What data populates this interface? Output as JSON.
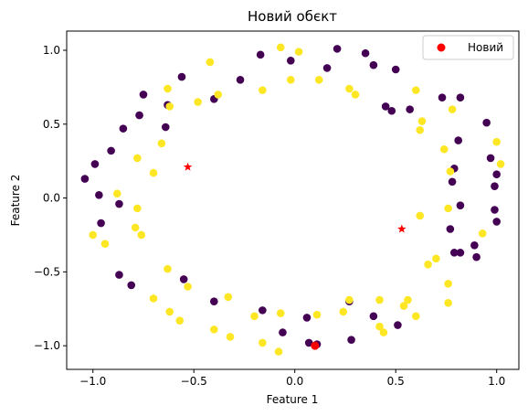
{
  "chart_data": {
    "type": "scatter",
    "title": "Новий обєкт",
    "xlabel": "Feature 1",
    "ylabel": "Feature 2",
    "xlim": [
      -1.13,
      1.11
    ],
    "ylim": [
      -1.16,
      1.13
    ],
    "xticks": [
      -1.0,
      -0.5,
      0.0,
      0.5,
      1.0
    ],
    "xtick_labels": [
      "−1.0",
      "−0.5",
      "0.0",
      "0.5",
      "1.0"
    ],
    "yticks": [
      -1.0,
      -0.5,
      0.0,
      0.5,
      1.0
    ],
    "ytick_labels": [
      "−1.0",
      "−0.5",
      "0.0",
      "0.5",
      "1.0"
    ],
    "grid": false,
    "legend": {
      "position": "top-right",
      "entries": [
        {
          "label": "Новий",
          "color": "#ff0000",
          "marker": "circle"
        }
      ]
    },
    "colors": {
      "class0": "#440154",
      "class1": "#fde725",
      "new_point": "#ff0000",
      "centroid": "#ff0000"
    },
    "series": [
      {
        "class": 0,
        "points": [
          [
            -1.04,
            0.13
          ],
          [
            -0.99,
            0.23
          ],
          [
            -0.97,
            0.02
          ],
          [
            -0.96,
            -0.17
          ],
          [
            -0.91,
            0.32
          ],
          [
            -0.87,
            -0.04
          ],
          [
            -0.85,
            0.47
          ],
          [
            -0.87,
            -0.52
          ],
          [
            -0.81,
            -0.59
          ],
          [
            -0.77,
            0.56
          ],
          [
            -0.75,
            0.7
          ],
          [
            -0.64,
            0.48
          ],
          [
            -0.63,
            0.63
          ],
          [
            -0.56,
            0.82
          ],
          [
            -0.55,
            -0.55
          ],
          [
            -0.4,
            -0.7
          ],
          [
            -0.4,
            0.67
          ],
          [
            -0.27,
            0.8
          ],
          [
            -0.17,
            0.97
          ],
          [
            -0.16,
            -0.76
          ],
          [
            -0.06,
            -0.91
          ],
          [
            -0.02,
            0.93
          ],
          [
            0.06,
            -0.81
          ],
          [
            0.07,
            -0.98
          ],
          [
            0.11,
            -0.99
          ],
          [
            0.16,
            0.88
          ],
          [
            0.21,
            1.01
          ],
          [
            0.27,
            -0.7
          ],
          [
            0.28,
            -0.96
          ],
          [
            0.35,
            0.98
          ],
          [
            0.39,
            -0.8
          ],
          [
            0.39,
            0.9
          ],
          [
            0.45,
            0.62
          ],
          [
            0.48,
            0.59
          ],
          [
            0.5,
            0.87
          ],
          [
            0.51,
            -0.86
          ],
          [
            0.57,
            0.6
          ],
          [
            0.73,
            0.68
          ],
          [
            0.77,
            -0.21
          ],
          [
            0.78,
            0.11
          ],
          [
            0.79,
            -0.37
          ],
          [
            0.79,
            0.2
          ],
          [
            0.82,
            -0.05
          ],
          [
            0.81,
            0.39
          ],
          [
            0.82,
            -0.37
          ],
          [
            0.82,
            0.68
          ],
          [
            0.89,
            -0.32
          ],
          [
            0.9,
            -0.4
          ],
          [
            0.95,
            0.51
          ],
          [
            0.97,
            0.27
          ],
          [
            0.99,
            -0.08
          ],
          [
            0.99,
            0.08
          ],
          [
            1.0,
            -0.16
          ],
          [
            1.0,
            0.16
          ]
        ]
      },
      {
        "class": 1,
        "points": [
          [
            -1.0,
            -0.25
          ],
          [
            -0.94,
            -0.31
          ],
          [
            -0.88,
            0.03
          ],
          [
            -0.79,
            -0.2
          ],
          [
            -0.78,
            -0.07
          ],
          [
            -0.78,
            0.27
          ],
          [
            -0.76,
            -0.25
          ],
          [
            -0.7,
            -0.68
          ],
          [
            -0.7,
            0.17
          ],
          [
            -0.66,
            0.37
          ],
          [
            -0.63,
            -0.48
          ],
          [
            -0.63,
            0.74
          ],
          [
            -0.62,
            -0.77
          ],
          [
            -0.57,
            -0.83
          ],
          [
            -0.53,
            -0.6
          ],
          [
            -0.48,
            0.65
          ],
          [
            -0.42,
            0.92
          ],
          [
            -0.4,
            -0.89
          ],
          [
            -0.38,
            0.7
          ],
          [
            -0.33,
            -0.67
          ],
          [
            -0.32,
            -0.94
          ],
          [
            -0.2,
            -0.8
          ],
          [
            -0.16,
            -0.98
          ],
          [
            -0.16,
            0.73
          ],
          [
            -0.08,
            -1.04
          ],
          [
            -0.07,
            -0.78
          ],
          [
            -0.07,
            1.02
          ],
          [
            -0.02,
            0.8
          ],
          [
            0.02,
            0.99
          ],
          [
            0.11,
            -0.79
          ],
          [
            0.12,
            0.8
          ],
          [
            0.24,
            -0.77
          ],
          [
            0.27,
            0.74
          ],
          [
            0.27,
            -0.69
          ],
          [
            0.3,
            0.7
          ],
          [
            0.42,
            -0.69
          ],
          [
            0.44,
            -0.91
          ],
          [
            0.54,
            -0.73
          ],
          [
            0.56,
            -0.69
          ],
          [
            0.6,
            0.73
          ],
          [
            0.6,
            -0.8
          ],
          [
            0.63,
            0.52
          ],
          [
            0.62,
            -0.12
          ],
          [
            0.62,
            0.46
          ],
          [
            0.66,
            -0.45
          ],
          [
            0.7,
            -0.41
          ],
          [
            0.74,
            0.33
          ],
          [
            0.76,
            -0.58
          ],
          [
            0.76,
            -0.71
          ],
          [
            0.76,
            -0.07
          ],
          [
            0.77,
            0.18
          ],
          [
            0.78,
            0.6
          ],
          [
            0.93,
            -0.24
          ],
          [
            1.0,
            0.38
          ],
          [
            1.02,
            0.23
          ],
          [
            0.42,
            -0.87
          ],
          [
            -0.62,
            0.62
          ]
        ]
      }
    ],
    "centroids": [
      [
        -0.53,
        0.21
      ],
      [
        0.53,
        -0.21
      ]
    ],
    "new_point": [
      0.1,
      -1.0
    ]
  }
}
